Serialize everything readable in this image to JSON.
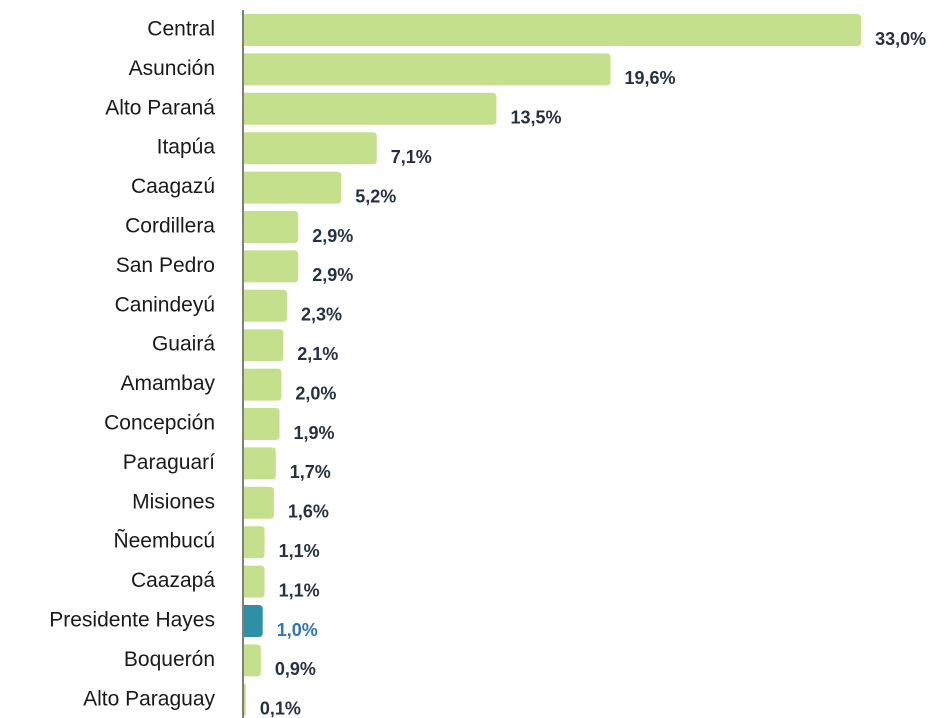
{
  "chart_data": {
    "type": "bar",
    "orientation": "horizontal",
    "categories": [
      "Central",
      "Asunción",
      "Alto Paraná",
      "Itapúa",
      "Caagazú",
      "Cordillera",
      "San Pedro",
      "Canindeyú",
      "Guairá",
      "Amambay",
      "Concepción",
      "Paraguarí",
      "Misiones",
      "Ñeembucú",
      "Caazapá",
      "Presidente Hayes",
      "Boquerón",
      "Alto Paraguay"
    ],
    "values": [
      33.0,
      19.6,
      13.5,
      7.1,
      5.2,
      2.9,
      2.9,
      2.3,
      2.1,
      2.0,
      1.9,
      1.7,
      1.6,
      1.1,
      1.1,
      1.0,
      0.9,
      0.1
    ],
    "value_labels": [
      "33,0%",
      "19,6%",
      "13,5%",
      "7,1%",
      "5,2%",
      "2,9%",
      "2,9%",
      "2,3%",
      "2,1%",
      "2,0%",
      "1,9%",
      "1,7%",
      "1,6%",
      "1,1%",
      "1,1%",
      "1,0%",
      "0,9%",
      "0,1%"
    ],
    "colors": [
      "#c5e08c",
      "#c5e08c",
      "#c5e08c",
      "#c5e08c",
      "#c5e08c",
      "#c5e08c",
      "#c5e08c",
      "#c5e08c",
      "#c5e08c",
      "#c5e08c",
      "#c5e08c",
      "#c5e08c",
      "#c5e08c",
      "#c5e08c",
      "#c5e08c",
      "#2e8fa6",
      "#c5e08c",
      "#c5e08c"
    ],
    "label_colors": [
      "#263142",
      "#263142",
      "#263142",
      "#263142",
      "#263142",
      "#263142",
      "#263142",
      "#263142",
      "#263142",
      "#263142",
      "#263142",
      "#263142",
      "#263142",
      "#263142",
      "#263142",
      "#2e75b6",
      "#263142",
      "#263142"
    ]
  }
}
